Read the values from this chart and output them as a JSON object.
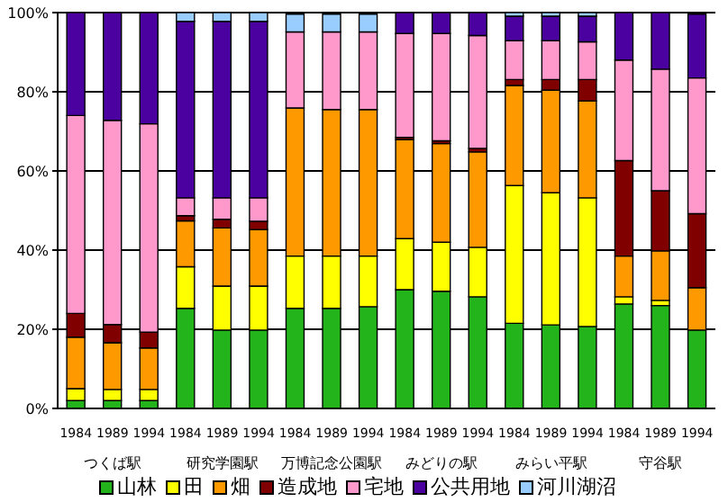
{
  "chart_data": {
    "type": "bar",
    "stacked": true,
    "categories": [
      "1984",
      "1989",
      "1994",
      "1984",
      "1989",
      "1994",
      "1984",
      "1989",
      "1994",
      "1984",
      "1989",
      "1994",
      "1984",
      "1989",
      "1994",
      "1984",
      "1989",
      "1994"
    ],
    "series": [
      {
        "name": "山林",
        "color": "#22b41a",
        "values": [
          2,
          2,
          2,
          25.3,
          19.8,
          19.8,
          25.3,
          25.3,
          25.7,
          30,
          29.6,
          28.2,
          21.5,
          21.1,
          20.7,
          26.4,
          26,
          19.8
        ]
      },
      {
        "name": "田",
        "color": "#ffff00",
        "values": [
          3,
          2.8,
          2.8,
          10.5,
          11.1,
          11.1,
          13.2,
          13.2,
          12.8,
          12.9,
          12.4,
          12.5,
          34.8,
          33.4,
          32.5,
          1.8,
          1.3,
          null
        ]
      },
      {
        "name": "畑",
        "color": "#ff9900",
        "values": [
          13,
          11.8,
          10.5,
          11.6,
          14.7,
          14.3,
          37.4,
          37,
          37,
          25,
          24.9,
          24.1,
          25.3,
          25.9,
          24.5,
          10.3,
          12.5,
          10.7
        ]
      },
      {
        "name": "造成地",
        "color": "#800000",
        "values": [
          6,
          4.6,
          4,
          1.3,
          2.2,
          2.1,
          0,
          0,
          0,
          0.6,
          0.7,
          0.9,
          1.5,
          2.7,
          5.4,
          24.1,
          15.2,
          18.7
        ]
      },
      {
        "name": "宅地",
        "color": "#ff99cc",
        "values": [
          50,
          51.6,
          52.6,
          4.5,
          5.4,
          5.9,
          19.2,
          19.6,
          19.6,
          26.2,
          27.1,
          28.5,
          9.8,
          9.8,
          9.5,
          25.4,
          30.7,
          34.3
        ]
      },
      {
        "name": "公共用地",
        "color": "#4b00a0",
        "values": [
          26,
          27.2,
          28.1,
          44.6,
          44.6,
          44.6,
          null,
          null,
          null,
          5.3,
          5.3,
          5.8,
          6.2,
          6.2,
          6.5,
          12,
          14.3,
          16.1
        ]
      },
      {
        "name": "河川湖沼",
        "color": "#99ccff",
        "values": [
          0,
          0,
          0,
          2.2,
          2.2,
          2.2,
          4.5,
          4.5,
          4.5,
          0,
          0,
          0,
          0.9,
          0.9,
          0.9,
          0,
          0,
          0
        ]
      }
    ],
    "annotations": [
      "つくば駅",
      "研究学園駅",
      "万博記念公園駅",
      "みどりの駅",
      "みらい平駅",
      "守谷駅"
    ],
    "ylim": [
      0,
      100
    ],
    "yticks": [
      {
        "value": 0,
        "label": "0%"
      },
      {
        "value": 20,
        "label": "20%"
      },
      {
        "value": 40,
        "label": "40%"
      },
      {
        "value": 60,
        "label": "60%"
      },
      {
        "value": 80,
        "label": "80%"
      },
      {
        "value": 100,
        "label": "100%"
      }
    ],
    "grid": "y",
    "legend": "bottom"
  }
}
